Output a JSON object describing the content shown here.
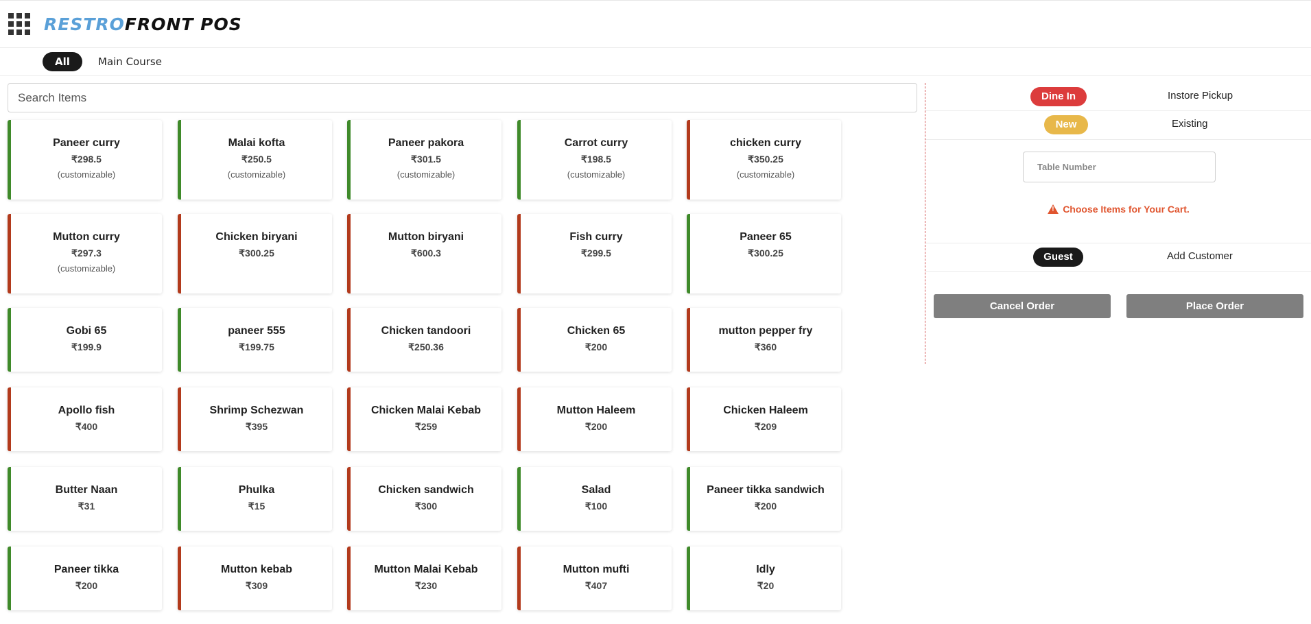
{
  "header": {
    "logo_part1": "RESTRO",
    "logo_part2": "FRONT POS",
    "menu_icon": "apps-grid-icon"
  },
  "categories": [
    {
      "label": "All",
      "active": true
    },
    {
      "label": "Main Course",
      "active": false
    }
  ],
  "search": {
    "placeholder": "Search Items",
    "value": ""
  },
  "items": [
    {
      "name": "Paneer curry",
      "price": "₹298.5",
      "note": "(customizable)",
      "type": "veg"
    },
    {
      "name": "Malai kofta",
      "price": "₹250.5",
      "note": "(customizable)",
      "type": "veg"
    },
    {
      "name": "Paneer pakora",
      "price": "₹301.5",
      "note": "(customizable)",
      "type": "veg"
    },
    {
      "name": "Carrot curry",
      "price": "₹198.5",
      "note": "(customizable)",
      "type": "veg"
    },
    {
      "name": "chicken curry",
      "price": "₹350.25",
      "note": "(customizable)",
      "type": "nonveg"
    },
    {
      "name": "Mutton curry",
      "price": "₹297.3",
      "note": "(customizable)",
      "type": "nonveg"
    },
    {
      "name": "Chicken biryani",
      "price": "₹300.25",
      "note": "",
      "type": "nonveg"
    },
    {
      "name": "Mutton biryani",
      "price": "₹600.3",
      "note": "",
      "type": "nonveg"
    },
    {
      "name": "Fish curry",
      "price": "₹299.5",
      "note": "",
      "type": "nonveg"
    },
    {
      "name": "Paneer 65",
      "price": "₹300.25",
      "note": "",
      "type": "veg"
    },
    {
      "name": "Gobi 65",
      "price": "₹199.9",
      "note": "",
      "type": "veg"
    },
    {
      "name": "paneer 555",
      "price": "₹199.75",
      "note": "",
      "type": "veg"
    },
    {
      "name": "Chicken tandoori",
      "price": "₹250.36",
      "note": "",
      "type": "nonveg"
    },
    {
      "name": "Chicken 65",
      "price": "₹200",
      "note": "",
      "type": "nonveg"
    },
    {
      "name": "mutton pepper fry",
      "price": "₹360",
      "note": "",
      "type": "nonveg"
    },
    {
      "name": "Apollo fish",
      "price": "₹400",
      "note": "",
      "type": "nonveg"
    },
    {
      "name": "Shrimp Schezwan",
      "price": "₹395",
      "note": "",
      "type": "nonveg"
    },
    {
      "name": "Chicken Malai Kebab",
      "price": "₹259",
      "note": "",
      "type": "nonveg"
    },
    {
      "name": "Mutton Haleem",
      "price": "₹200",
      "note": "",
      "type": "nonveg"
    },
    {
      "name": "Chicken Haleem",
      "price": "₹209",
      "note": "",
      "type": "nonveg"
    },
    {
      "name": "Butter Naan",
      "price": "₹31",
      "note": "",
      "type": "veg"
    },
    {
      "name": "Phulka",
      "price": "₹15",
      "note": "",
      "type": "veg"
    },
    {
      "name": "Chicken sandwich",
      "price": "₹300",
      "note": "",
      "type": "nonveg"
    },
    {
      "name": "Salad",
      "price": "₹100",
      "note": "",
      "type": "veg"
    },
    {
      "name": "Paneer tikka sandwich",
      "price": "₹200",
      "note": "",
      "type": "veg"
    },
    {
      "name": "Paneer tikka",
      "price": "₹200",
      "note": "",
      "type": "veg"
    },
    {
      "name": "Mutton kebab",
      "price": "₹309",
      "note": "",
      "type": "nonveg"
    },
    {
      "name": "Mutton Malai Kebab",
      "price": "₹230",
      "note": "",
      "type": "nonveg"
    },
    {
      "name": "Mutton mufti",
      "price": "₹407",
      "note": "",
      "type": "nonveg"
    },
    {
      "name": "Idly",
      "price": "₹20",
      "note": "",
      "type": "veg"
    }
  ],
  "cart": {
    "order_type": {
      "selected": "Dine In",
      "other": "Instore Pickup"
    },
    "table_mode": {
      "selected": "New",
      "other": "Existing"
    },
    "table_number_placeholder": "Table Number",
    "warning": "Choose Items for Your Cart.",
    "warning_icon": "warning-triangle-icon",
    "customer": {
      "selected": "Guest",
      "other": "Add Customer"
    },
    "cancel_label": "Cancel Order",
    "place_label": "Place Order"
  },
  "colors": {
    "veg": "#3f8a2a",
    "nonveg": "#b23a1c",
    "dine_in": "#dc3c3c",
    "new": "#e8b84a",
    "logo_accent": "#5aa0d8",
    "warning": "#e0552f"
  }
}
